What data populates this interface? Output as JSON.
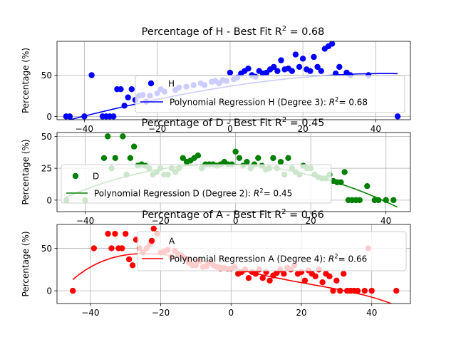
{
  "chart_data": [
    {
      "type": "scatter",
      "title": "Percentage of H - Best Fit $R^2$ = 0.68",
      "title_main": "Percentage of H - Best Fit R",
      "title_sup": "2",
      "title_tail": " = 0.68",
      "ylabel": "Percentage (%)",
      "xlim": [
        -47.5,
        49.5
      ],
      "ylim": [
        -4,
        91
      ],
      "xticks": [
        -40,
        -20,
        0,
        20,
        40
      ],
      "yticks": [
        0,
        50
      ],
      "grid": true,
      "legend_position": "center-right",
      "legend": [
        {
          "kind": "marker",
          "label": "H"
        },
        {
          "kind": "line",
          "label": "Polynomial Regression H (Degree 3): ",
          "label_math": "R",
          "label_sup": "2",
          "label_tail": "= 0.68"
        }
      ],
      "series": [
        {
          "name": "H",
          "color": "#0000ff",
          "points": [
            [
              -45,
              0
            ],
            [
              -44,
              0
            ],
            [
              -40,
              0
            ],
            [
              -38,
              50
            ],
            [
              -35,
              0
            ],
            [
              -34,
              0
            ],
            [
              -33,
              0
            ],
            [
              -32,
              0
            ],
            [
              -31,
              33
            ],
            [
              -30,
              33
            ],
            [
              -29,
              13
            ],
            [
              -28,
              23
            ],
            [
              -27,
              33
            ],
            [
              -26,
              20
            ],
            [
              -25,
              25
            ],
            [
              -24,
              26
            ],
            [
              -23,
              18
            ],
            [
              -22,
              25
            ],
            [
              -20,
              28
            ],
            [
              -19,
              33
            ],
            [
              -18,
              30
            ],
            [
              -15,
              32
            ],
            [
              -14,
              35
            ],
            [
              -12,
              36
            ],
            [
              -10,
              38
            ],
            [
              -8,
              40
            ],
            [
              -7,
              38
            ],
            [
              -5,
              42
            ],
            [
              -4,
              43
            ],
            [
              -3,
              40
            ],
            [
              -2,
              44
            ],
            [
              -1,
              43
            ],
            [
              0,
              53
            ],
            [
              1,
              45
            ],
            [
              2,
              47
            ],
            [
              3,
              52
            ],
            [
              4,
              55
            ],
            [
              5,
              58
            ],
            [
              6,
              50
            ],
            [
              7,
              48
            ],
            [
              8,
              55
            ],
            [
              9,
              52
            ],
            [
              10,
              53
            ],
            [
              11,
              57
            ],
            [
              12,
              60
            ],
            [
              13,
              55
            ],
            [
              14,
              68
            ],
            [
              15,
              57
            ],
            [
              16,
              58
            ],
            [
              17,
              55
            ],
            [
              18,
              75
            ],
            [
              19,
              60
            ],
            [
              20,
              70
            ],
            [
              21,
              57
            ],
            [
              22,
              55
            ],
            [
              23,
              72
            ],
            [
              24,
              60
            ],
            [
              25,
              55
            ],
            [
              26,
              82
            ],
            [
              27,
              85
            ],
            [
              28,
              88
            ],
            [
              29,
              52
            ],
            [
              30,
              60
            ],
            [
              32,
              53
            ],
            [
              33,
              50
            ],
            [
              38,
              50
            ],
            [
              46,
              0
            ]
          ]
        },
        {
          "name": "Polynomial Regression H (Degree 3)",
          "color": "#0000ff",
          "fit": [
            -2.26e-05,
            -0.00653,
            0.68,
            36.6
          ],
          "x_range": [
            -45,
            46
          ]
        }
      ]
    },
    {
      "type": "scatter",
      "title": "Percentage of D - Best Fit $R^2$ = 0.45",
      "title_main": "Percentage of D - Best Fit R",
      "title_sup": "2",
      "title_tail": " = 0.45",
      "ylabel": "Percentage (%)",
      "xlim": [
        -47.5,
        46.5
      ],
      "ylim": [
        -9,
        53
      ],
      "xticks": [
        -40,
        -20,
        0,
        20,
        40
      ],
      "yticks": [
        0,
        25,
        50
      ],
      "grid": true,
      "legend_position": "lower-left",
      "legend": [
        {
          "kind": "marker",
          "label": "D"
        },
        {
          "kind": "line",
          "label": "Polynomial Regression D (Degree 2): ",
          "label_math": "R",
          "label_sup": "2",
          "label_tail": "= 0.45"
        }
      ],
      "series": [
        {
          "name": "D",
          "color": "#008000",
          "points": [
            [
              -45,
              0
            ],
            [
              -40,
              0
            ],
            [
              -35,
              33
            ],
            [
              -34,
              50
            ],
            [
              -33,
              25
            ],
            [
              -32,
              33
            ],
            [
              -30,
              50
            ],
            [
              -29,
              20
            ],
            [
              -28,
              33
            ],
            [
              -27,
              42
            ],
            [
              -26,
              27
            ],
            [
              -25,
              28
            ],
            [
              -24,
              27
            ],
            [
              -23,
              25
            ],
            [
              -22,
              20
            ],
            [
              -21,
              22
            ],
            [
              -20,
              25
            ],
            [
              -19,
              20
            ],
            [
              -18,
              20
            ],
            [
              -17,
              25
            ],
            [
              -16,
              22
            ],
            [
              -15,
              25
            ],
            [
              -14,
              33
            ],
            [
              -13,
              30
            ],
            [
              -12,
              31
            ],
            [
              -11,
              33
            ],
            [
              -10,
              35
            ],
            [
              -9,
              25
            ],
            [
              -8,
              28
            ],
            [
              -7,
              28
            ],
            [
              -6,
              28
            ],
            [
              -5,
              27
            ],
            [
              -4,
              28
            ],
            [
              -3,
              30
            ],
            [
              -2,
              28
            ],
            [
              -1,
              28
            ],
            [
              0,
              38
            ],
            [
              1,
              33
            ],
            [
              2,
              27
            ],
            [
              3,
              30
            ],
            [
              4,
              25
            ],
            [
              5,
              28
            ],
            [
              6,
              33
            ],
            [
              7,
              27
            ],
            [
              8,
              24
            ],
            [
              9,
              25
            ],
            [
              10,
              33
            ],
            [
              11,
              25
            ],
            [
              12,
              30
            ],
            [
              13,
              20
            ],
            [
              14,
              33
            ],
            [
              15,
              25
            ],
            [
              16,
              22
            ],
            [
              17,
              20
            ],
            [
              18,
              27
            ],
            [
              19,
              25
            ],
            [
              20,
              25
            ],
            [
              21,
              20
            ],
            [
              22,
              18
            ],
            [
              23,
              17
            ],
            [
              24,
              17
            ],
            [
              25,
              20
            ],
            [
              26,
              15
            ],
            [
              27,
              14
            ],
            [
              28,
              14
            ],
            [
              29,
              22
            ],
            [
              30,
              0
            ],
            [
              31,
              0
            ],
            [
              32,
              0
            ],
            [
              33,
              0
            ],
            [
              35,
              11
            ],
            [
              37,
              0
            ],
            [
              38,
              0
            ],
            [
              40,
              0
            ],
            [
              42,
              0
            ]
          ]
        },
        {
          "name": "Polynomial Regression D (Degree 2)",
          "color": "#008000",
          "fit": [
            -0.0153,
            -0.12,
            28.0
          ],
          "x_range": [
            -45,
            43
          ]
        }
      ]
    },
    {
      "type": "scatter",
      "title": "Percentage of A - Best Fit $R^2$ = 0.66",
      "title_main": "Percentage of A - Best Fit R",
      "title_sup": "2",
      "title_tail": " = 0.66",
      "ylabel": "Percentage (%)",
      "xlim": [
        -49.5,
        51
      ],
      "ylim": [
        -15,
        78
      ],
      "xticks": [
        -40,
        -20,
        0,
        20,
        40
      ],
      "yticks": [
        0,
        50
      ],
      "grid": true,
      "legend_position": "upper-right",
      "legend": [
        {
          "kind": "marker",
          "label": "A"
        },
        {
          "kind": "line",
          "label": "Polynomial Regression A (Degree 4): ",
          "label_math": "R",
          "label_sup": "2",
          "label_tail": "= 0.66"
        }
      ],
      "series": [
        {
          "name": "A",
          "color": "#ff0000",
          "points": [
            [
              -45,
              0
            ],
            [
              -39,
              50
            ],
            [
              -35,
              67
            ],
            [
              -34,
              50
            ],
            [
              -33,
              67
            ],
            [
              -32,
              50
            ],
            [
              -31,
              50
            ],
            [
              -30,
              67
            ],
            [
              -29,
              37
            ],
            [
              -28,
              30
            ],
            [
              -27,
              60
            ],
            [
              -26,
              50
            ],
            [
              -25,
              45
            ],
            [
              -24,
              50
            ],
            [
              -23,
              55
            ],
            [
              -22,
              73
            ],
            [
              -21,
              67
            ],
            [
              -20,
              45
            ],
            [
              -19,
              46
            ],
            [
              -18,
              48
            ],
            [
              -17,
              40
            ],
            [
              -16,
              47
            ],
            [
              -15,
              43
            ],
            [
              -14,
              41
            ],
            [
              -13,
              38
            ],
            [
              -12,
              33
            ],
            [
              -11,
              30
            ],
            [
              -10,
              30
            ],
            [
              -9,
              35
            ],
            [
              -8,
              28
            ],
            [
              -7,
              29
            ],
            [
              -6,
              33
            ],
            [
              -5,
              30
            ],
            [
              -4,
              28
            ],
            [
              -3,
              26
            ],
            [
              -2,
              27
            ],
            [
              -1,
              26
            ],
            [
              0,
              26
            ],
            [
              1,
              28
            ],
            [
              2,
              20
            ],
            [
              3,
              22
            ],
            [
              4,
              25
            ],
            [
              5,
              15
            ],
            [
              6,
              22
            ],
            [
              7,
              20
            ],
            [
              8,
              25
            ],
            [
              9,
              15
            ],
            [
              10,
              22
            ],
            [
              11,
              12
            ],
            [
              12,
              18
            ],
            [
              13,
              21
            ],
            [
              14,
              25
            ],
            [
              15,
              20
            ],
            [
              16,
              27
            ],
            [
              17,
              25
            ],
            [
              18,
              30
            ],
            [
              19,
              20
            ],
            [
              20,
              22
            ],
            [
              21,
              12
            ],
            [
              22,
              24
            ],
            [
              23,
              20
            ],
            [
              24,
              17
            ],
            [
              25,
              25
            ],
            [
              26,
              10
            ],
            [
              27,
              20
            ],
            [
              28,
              17
            ],
            [
              29,
              0
            ],
            [
              30,
              12
            ],
            [
              31,
              0
            ],
            [
              32,
              20
            ],
            [
              33,
              0
            ],
            [
              34,
              0
            ],
            [
              35,
              0
            ],
            [
              36,
              0
            ],
            [
              38,
              0
            ],
            [
              39,
              50
            ],
            [
              40,
              0
            ],
            [
              47,
              0
            ]
          ]
        },
        {
          "name": "Polynomial Regression A (Degree 4)",
          "color": "#ff0000",
          "fit": [
            -7.2e-06,
            0.000324,
            0.00106,
            -0.96,
            26.9
          ],
          "x_range": [
            -45,
            47
          ]
        }
      ]
    }
  ]
}
